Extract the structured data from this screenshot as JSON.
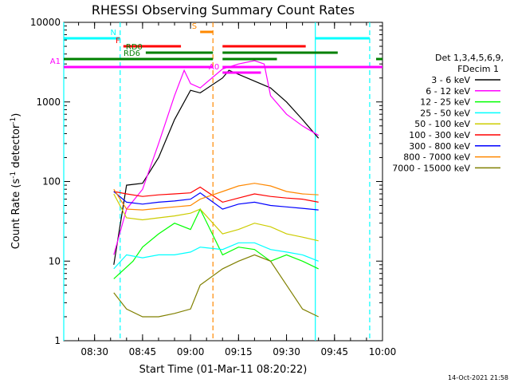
{
  "chart_data": {
    "type": "line",
    "title": "RHESSI Observing Summary Count Rates",
    "xlabel": "Start Time (01-Mar-11 08:20:22)",
    "ylabel": "Count Rate (s",
    "ylabel_sup1": "-1",
    "ylabel_mid": " detector",
    "ylabel_sup2": "-1",
    "ylabel_end": ")",
    "y_scale": "log",
    "ylim": [
      1,
      10000
    ],
    "xlim": [
      "08:20:22",
      "10:00:00"
    ],
    "x_ticks": [
      "08:30",
      "08:45",
      "09:00",
      "09:15",
      "09:30",
      "09:45",
      "10:00"
    ],
    "y_ticks": [
      "1",
      "10",
      "100",
      "1000",
      "10000"
    ],
    "timestamp": "14-Oct-2021 21:58",
    "legend": {
      "header1": "Det 1,3,4,5,6,9,",
      "header2": "FDecim 1",
      "placement": "right"
    },
    "series": [
      {
        "name": "3 - 6 keV",
        "color": "#000000",
        "x": [
          "08:36",
          "08:40",
          "08:45",
          "08:50",
          "08:55",
          "09:00",
          "09:03",
          "09:10",
          "09:12",
          "09:25",
          "09:30",
          "09:35",
          "09:40"
        ],
        "y": [
          9,
          90,
          95,
          200,
          600,
          1400,
          1300,
          2000,
          2500,
          1500,
          1000,
          600,
          350
        ]
      },
      {
        "name": "6 - 12 keV",
        "color": "#ff00ff",
        "x": [
          "08:36",
          "08:40",
          "08:45",
          "08:50",
          "08:55",
          "08:58",
          "09:00",
          "09:03",
          "09:10",
          "09:15",
          "09:20",
          "09:23",
          "09:25",
          "09:30",
          "09:35",
          "09:40"
        ],
        "y": [
          12,
          45,
          80,
          300,
          1200,
          2500,
          1700,
          1500,
          2600,
          3000,
          3300,
          3000,
          1200,
          700,
          500,
          380
        ]
      },
      {
        "name": "12 - 25 keV",
        "color": "#00ff00",
        "x": [
          "08:36",
          "08:42",
          "08:45",
          "08:50",
          "08:55",
          "09:00",
          "09:03",
          "09:10",
          "09:15",
          "09:20",
          "09:25",
          "09:30",
          "09:35",
          "09:40"
        ],
        "y": [
          6,
          10,
          15,
          22,
          30,
          25,
          45,
          12,
          15,
          14,
          10,
          12,
          10,
          8
        ]
      },
      {
        "name": "25 - 50 keV",
        "color": "#00ffff",
        "x": [
          "08:36",
          "08:40",
          "08:45",
          "08:50",
          "08:55",
          "09:00",
          "09:03",
          "09:10",
          "09:15",
          "09:20",
          "09:25",
          "09:30",
          "09:35",
          "09:40"
        ],
        "y": [
          8,
          12,
          11,
          12,
          12,
          13,
          15,
          14,
          17,
          17,
          14,
          13,
          12,
          10
        ]
      },
      {
        "name": "50 - 100 keV",
        "color": "#cccc00",
        "x": [
          "08:36",
          "08:40",
          "08:45",
          "08:50",
          "08:55",
          "09:00",
          "09:03",
          "09:10",
          "09:15",
          "09:20",
          "09:25",
          "09:30",
          "09:35",
          "09:40"
        ],
        "y": [
          70,
          35,
          33,
          35,
          37,
          40,
          45,
          22,
          25,
          30,
          27,
          22,
          20,
          18
        ]
      },
      {
        "name": "100 - 300 keV",
        "color": "#ff0000",
        "x": [
          "08:36",
          "08:40",
          "08:45",
          "08:50",
          "08:55",
          "09:00",
          "09:03",
          "09:10",
          "09:15",
          "09:20",
          "09:25",
          "09:30",
          "09:35",
          "09:40"
        ],
        "y": [
          75,
          70,
          65,
          68,
          70,
          72,
          85,
          55,
          62,
          70,
          65,
          62,
          60,
          55
        ]
      },
      {
        "name": "300 - 800 keV",
        "color": "#0000ff",
        "x": [
          "08:36",
          "08:40",
          "08:45",
          "08:50",
          "08:55",
          "09:00",
          "09:03",
          "09:10",
          "09:15",
          "09:20",
          "09:25",
          "09:30",
          "09:35",
          "09:40"
        ],
        "y": [
          75,
          55,
          52,
          55,
          57,
          60,
          72,
          45,
          52,
          55,
          50,
          48,
          46,
          44
        ]
      },
      {
        "name": "800 - 7000 keV",
        "color": "#ff8800",
        "x": [
          "08:36",
          "08:40",
          "08:45",
          "08:50",
          "08:55",
          "09:00",
          "09:03",
          "09:10",
          "09:15",
          "09:20",
          "09:25",
          "09:30",
          "09:35",
          "09:40"
        ],
        "y": [
          80,
          45,
          44,
          46,
          48,
          50,
          60,
          75,
          88,
          95,
          88,
          75,
          70,
          68
        ]
      },
      {
        "name": "7000 - 15000 keV",
        "color": "#808000",
        "x": [
          "08:36",
          "08:40",
          "08:45",
          "08:50",
          "08:55",
          "09:00",
          "09:03",
          "09:10",
          "09:15",
          "09:20",
          "09:25",
          "09:30",
          "09:35",
          "09:40"
        ],
        "y": [
          4,
          2.5,
          2,
          2,
          2.2,
          2.5,
          5,
          8,
          10,
          12,
          10,
          5,
          2.5,
          2
        ]
      }
    ],
    "state_bars": [
      {
        "label": "N",
        "color": "#00ffff",
        "segments": [
          [
            "08:20:22",
            "08:38"
          ],
          [
            "09:39",
            "09:56"
          ]
        ]
      },
      {
        "label": "S",
        "color": "#ff8800",
        "segments": [
          [
            "09:03",
            "09:07"
          ]
        ]
      },
      {
        "label": "F",
        "color": "#ff0000",
        "segments": [
          [
            "08:39",
            "08:57"
          ],
          [
            "09:10",
            "09:36"
          ]
        ]
      },
      {
        "label": "RD0",
        "color": "#008000",
        "segments": [
          [
            "08:46",
            "09:07"
          ],
          [
            "09:10",
            "09:46"
          ]
        ]
      },
      {
        "label": "RD6",
        "color": "#008000",
        "segments": [
          [
            "08:20:22",
            "09:07"
          ],
          [
            "09:10",
            "09:27"
          ],
          [
            "09:58",
            "10:00"
          ]
        ]
      },
      {
        "label": "A1",
        "color": "#ff00ff",
        "segments": [
          [
            "08:20:22",
            "09:07"
          ],
          [
            "09:10",
            "10:00"
          ]
        ]
      },
      {
        "label": "A0",
        "color": "#ff00ff",
        "segments": [
          [
            "09:10",
            "09:22"
          ]
        ]
      }
    ],
    "vlines": [
      {
        "time": "08:20:22",
        "color": "#00ffff",
        "style": "solid"
      },
      {
        "time": "08:38",
        "color": "#00ffff",
        "style": "dashed"
      },
      {
        "time": "09:07",
        "color": "#ff8800",
        "style": "dashed"
      },
      {
        "time": "09:39",
        "color": "#00ffff",
        "style": "solid"
      },
      {
        "time": "09:56",
        "color": "#00ffff",
        "style": "dashed"
      }
    ],
    "gaps": [
      [
        "08:20:22",
        "08:36"
      ],
      [
        "09:04",
        "09:09"
      ],
      [
        "09:41",
        "10:00"
      ]
    ]
  }
}
